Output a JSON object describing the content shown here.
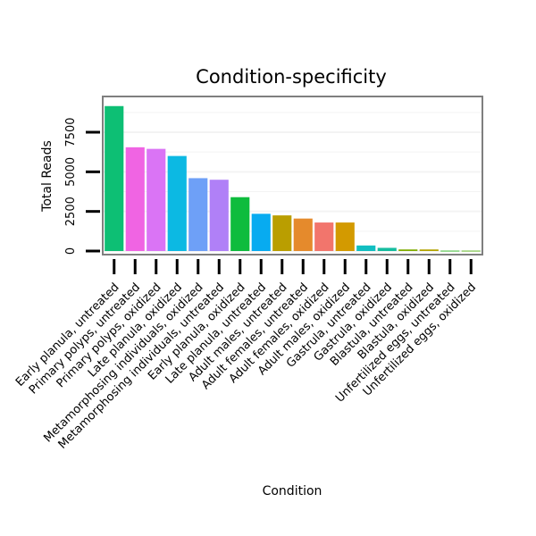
{
  "chart_data": {
    "type": "bar",
    "title": "Condition-specificity",
    "xlabel": "Condition",
    "ylabel": "Total Reads",
    "ylim": [
      0,
      9700
    ],
    "yticks": [
      0,
      2500,
      5000,
      7500
    ],
    "grid": true,
    "legend": "none",
    "categories": [
      "Early planula, untreated",
      "Primary polyps, untreated",
      "Primary polyps, oxidized",
      "Late planula, oxidized",
      "Metamorphosing individuals, oxidized",
      "Metamorphosing individuals, untreated",
      "Early planula, oxidized",
      "Late planula, untreated",
      "Adult males, untreated",
      "Adult females, untreated",
      "Adult females, oxidized",
      "Adult males, oxidized",
      "Gastrula, untreated",
      "Gastrula, oxidized",
      "Blastula, untreated",
      "Blastula, oxidized",
      "Unfertilized eggs, untreated",
      "Unfertilized eggs, oxidized"
    ],
    "values": [
      9150,
      6550,
      6450,
      6000,
      4600,
      4500,
      3400,
      2350,
      2250,
      2050,
      1800,
      1800,
      350,
      200,
      100,
      100,
      20,
      20
    ],
    "colors": [
      "#0DBF74",
      "#F064E3",
      "#DA74F5",
      "#0CB9E3",
      "#6EA0F7",
      "#B080F7",
      "#0EBC3D",
      "#08ABF0",
      "#BA9E00",
      "#E58A2C",
      "#F2756C",
      "#D39A00",
      "#11BEC1",
      "#15BC9F",
      "#80AC00",
      "#B2A300",
      "#1DBA10",
      "#4AB300"
    ]
  }
}
